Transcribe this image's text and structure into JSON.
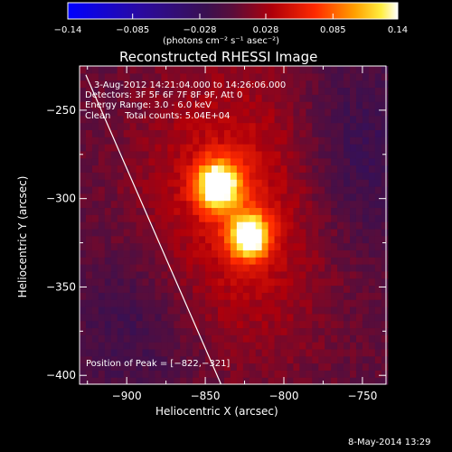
{
  "chart_data": {
    "type": "heatmap",
    "title": "Reconstructed RHESSI Image",
    "xlabel": "Heliocentric X (arcsec)",
    "ylabel": "Heliocentric Y (arcsec)",
    "xlim": [
      -930,
      -735
    ],
    "ylim": [
      -405,
      -225
    ],
    "x_ticks": [
      -900,
      -850,
      -800,
      -750
    ],
    "y_ticks": [
      -250,
      -300,
      -350,
      -400
    ],
    "x_tick_labels": [
      "−900",
      "−850",
      "−800",
      "−750"
    ],
    "y_tick_labels": [
      "−250",
      "−300",
      "−350",
      "−400"
    ],
    "colorbar": {
      "range": [
        -0.14,
        0.14
      ],
      "tick_values": [
        -0.14,
        -0.085,
        -0.028,
        0.028,
        0.085,
        0.14
      ],
      "tick_labels": [
        "−0.14",
        "−0.085",
        "−0.028",
        "0.028",
        "0.085",
        "0.14"
      ],
      "unit_label": "(photons cm⁻² s⁻¹ asec⁻²)"
    },
    "sources": [
      {
        "x": -842,
        "y": -292,
        "peak": 0.135,
        "sigma": 10
      },
      {
        "x": -822,
        "y": -321,
        "peak": 0.14,
        "sigma": 9
      }
    ],
    "peak": {
      "x": -822,
      "y": -321
    },
    "limb_line": [
      {
        "x": -926,
        "y": -230
      },
      {
        "x": -840,
        "y": -405
      }
    ],
    "annotations": {
      "time_range": "3-Aug-2012 14:21:04.000 to 14:26:06.000",
      "detectors": "Detectors: 3F 5F 6F 7F 8F 9F, Att 0",
      "energy_range": "Energy Range: 3.0 - 6.0 keV",
      "method_counts": "Clean     Total counts: 5.04E+04",
      "peak_position": "Position of Peak = [−822,−321]"
    }
  },
  "footer_date": "8-May-2014 13:29",
  "colors": {
    "background": "#000000",
    "low": "#0000ff",
    "mid": "#5a1a6a",
    "high": "#ffffff"
  }
}
